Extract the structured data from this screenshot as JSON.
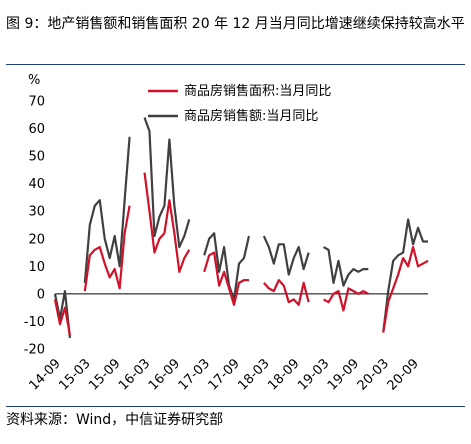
{
  "header": {
    "title": "图 9：地产销售额和销售面积 20 年 12 月当月同比增速继续保持较高水平"
  },
  "footer": {
    "source": "资料来源：Wind，中信证券研究部"
  },
  "chart_data": {
    "type": "line",
    "title": "",
    "ylabel": "%",
    "xlabel": "",
    "ylim": [
      -20,
      70
    ],
    "yticks": [
      -20,
      -10,
      0,
      10,
      20,
      30,
      40,
      50,
      60,
      70
    ],
    "x_tick_labels": [
      "14-09",
      "15-03",
      "15-09",
      "16-03",
      "16-09",
      "17-03",
      "17-09",
      "18-03",
      "18-09",
      "19-03",
      "19-09",
      "20-03",
      "20-09"
    ],
    "x": [
      "2014-09",
      "2014-10",
      "2014-11",
      "2014-12",
      "2015-01",
      "2015-02",
      "2015-03",
      "2015-04",
      "2015-05",
      "2015-06",
      "2015-07",
      "2015-08",
      "2015-09",
      "2015-10",
      "2015-11",
      "2015-12",
      "2016-01",
      "2016-02",
      "2016-03",
      "2016-04",
      "2016-05",
      "2016-06",
      "2016-07",
      "2016-08",
      "2016-09",
      "2016-10",
      "2016-11",
      "2016-12",
      "2017-01",
      "2017-02",
      "2017-03",
      "2017-04",
      "2017-05",
      "2017-06",
      "2017-07",
      "2017-08",
      "2017-09",
      "2017-10",
      "2017-11",
      "2017-12",
      "2018-01",
      "2018-02",
      "2018-03",
      "2018-04",
      "2018-05",
      "2018-06",
      "2018-07",
      "2018-08",
      "2018-09",
      "2018-10",
      "2018-11",
      "2018-12",
      "2019-01",
      "2019-02",
      "2019-03",
      "2019-04",
      "2019-05",
      "2019-06",
      "2019-07",
      "2019-08",
      "2019-09",
      "2019-10",
      "2019-11",
      "2019-12",
      "2020-01",
      "2020-02",
      "2020-03",
      "2020-04",
      "2020-05",
      "2020-06",
      "2020-07",
      "2020-08",
      "2020-09",
      "2020-10",
      "2020-11",
      "2020-12"
    ],
    "legend_position": "top",
    "grid": false,
    "series": [
      {
        "name": "商品房销售面积:当月同比",
        "color": "#d0122a",
        "values": [
          -2,
          -11,
          -5,
          -15,
          null,
          null,
          1,
          14,
          16,
          17,
          11,
          6,
          9,
          2,
          22,
          32,
          null,
          null,
          44,
          30,
          15,
          20,
          22,
          34,
          22,
          8,
          13,
          16,
          null,
          null,
          8,
          14,
          15,
          3,
          8,
          2,
          -4,
          4,
          5,
          5,
          null,
          null,
          4,
          2,
          1,
          5,
          3,
          -3,
          -2,
          -4,
          4,
          -3,
          null,
          null,
          -2,
          -3,
          0,
          1,
          -6,
          2,
          1,
          0,
          1,
          0,
          null,
          null,
          -14,
          -3,
          2,
          7,
          13,
          10,
          17,
          10,
          11,
          12
        ]
      },
      {
        "name": "商品房销售额:当月同比",
        "color": "#404040",
        "values": [
          0,
          -9,
          1,
          -16,
          null,
          null,
          4,
          25,
          32,
          34,
          20,
          13,
          21,
          10,
          34,
          57,
          null,
          null,
          64,
          59,
          21,
          28,
          32,
          56,
          32,
          17,
          21,
          27,
          null,
          null,
          14,
          20,
          22,
          8,
          17,
          3,
          -2,
          11,
          13,
          21,
          null,
          null,
          21,
          17,
          11,
          18,
          18,
          7,
          13,
          17,
          9,
          15,
          null,
          null,
          17,
          16,
          4,
          12,
          3,
          7,
          9,
          8,
          9,
          9,
          null,
          null,
          -14,
          1,
          12,
          14,
          15,
          27,
          18,
          24,
          19,
          19
        ]
      }
    ]
  }
}
